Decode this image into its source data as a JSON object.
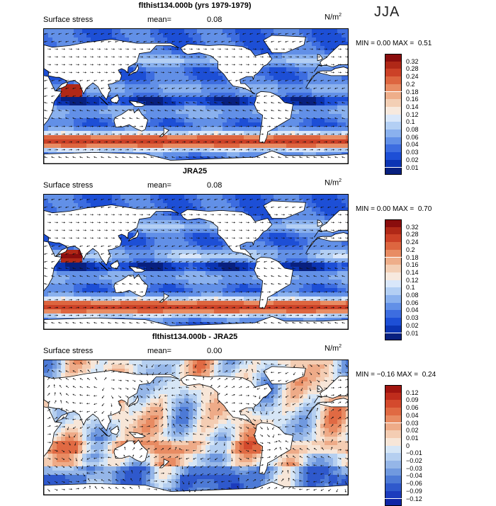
{
  "season": "JJA",
  "palette": {
    "pos": [
      "#f7e6d8",
      "#f4cdb3",
      "#eeab88",
      "#e88b62",
      "#e06a43",
      "#d44a2d",
      "#bf2c1c",
      "#a11510",
      "#7c0808"
    ],
    "neg": [
      "#d6e6f6",
      "#b5cff0",
      "#95b6e8",
      "#7099df",
      "#4d7ad6",
      "#2f59cc",
      "#1c3cbd",
      "#0e25a6",
      "#05158a"
    ],
    "seq": [
      "#08207f",
      "#0b34b3",
      "#1d4fd6",
      "#3d6de0",
      "#6290e7",
      "#8ab1ee",
      "#b3cff4",
      "#d9e7fa",
      "#f7e9de",
      "#f3cfb5",
      "#eeae8a",
      "#e88c63",
      "#dd6640",
      "#cc4127",
      "#b02817",
      "#8a0d0d"
    ]
  },
  "panels": [
    {
      "title": "flthist134.000b (yrs 1979-1979)",
      "variable": "Surface stress",
      "mean_label": "mean=",
      "mean_value": "0.08",
      "units": "N/m",
      "units_sup": "2",
      "min_label": "MIN =",
      "min_value": "0.00",
      "max_label": "MAX =",
      "max_value": "0.51",
      "colorbar": [
        "0.32",
        "0.28",
        "0.24",
        "0.2",
        "0.18",
        "0.16",
        "0.14",
        "0.12",
        "0.1",
        "0.08",
        "0.06",
        "0.04",
        "0.03",
        "0.02",
        "0.01"
      ],
      "kind": "seq"
    },
    {
      "title": "JRA25",
      "variable": "Surface stress",
      "mean_label": "mean=",
      "mean_value": "0.08",
      "units": "N/m",
      "units_sup": "2",
      "min_label": "MIN =",
      "min_value": "0.00",
      "max_label": "MAX =",
      "max_value": "0.70",
      "colorbar": [
        "0.32",
        "0.28",
        "0.24",
        "0.2",
        "0.18",
        "0.16",
        "0.14",
        "0.12",
        "0.1",
        "0.08",
        "0.06",
        "0.04",
        "0.03",
        "0.02",
        "0.01"
      ],
      "kind": "seq"
    },
    {
      "title": "flthist134.000b - JRA25",
      "variable": "Surface stress",
      "mean_label": "mean=",
      "mean_value": "0.00",
      "units": "N/m",
      "units_sup": "2",
      "min_label": "MIN =",
      "min_value": "−0.16",
      "max_label": "MAX =",
      "max_value": "0.24",
      "colorbar": [
        "0.12",
        "0.09",
        "0.06",
        "0.04",
        "0.03",
        "0.02",
        "0.01",
        "0",
        "−0.01",
        "−0.02",
        "−0.03",
        "−0.04",
        "−0.06",
        "−0.09",
        "−0.12"
      ],
      "kind": "div"
    }
  ]
}
